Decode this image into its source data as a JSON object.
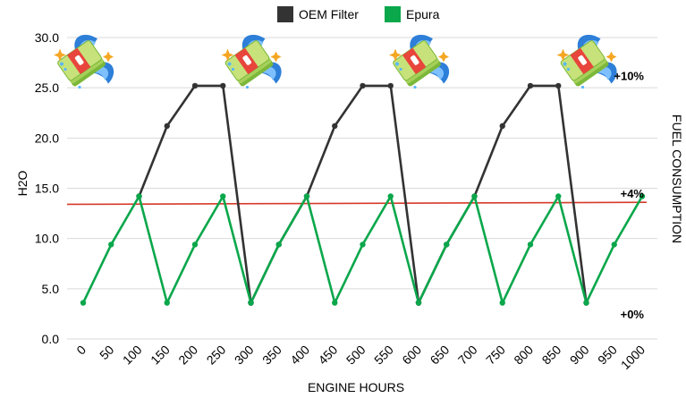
{
  "chart_data": {
    "type": "line",
    "categories": [
      "0",
      "50",
      "100",
      "150",
      "200",
      "250",
      "300",
      "350",
      "400",
      "450",
      "500",
      "550",
      "600",
      "650",
      "700",
      "750",
      "800",
      "850",
      "900",
      "950",
      "1000"
    ],
    "series": [
      {
        "name": "OEM Filter",
        "color": "#333333",
        "values": [
          null,
          null,
          null,
          null,
          null,
          null,
          3.6,
          9.4,
          14.2,
          21.2,
          25.2,
          25.2,
          3.6,
          9.4,
          14.2,
          21.2,
          25.2,
          25.2,
          3.6,
          null,
          null
        ],
        "segments": [
          [
            [
              100,
              14.2
            ],
            [
              150,
              21.2
            ],
            [
              200,
              25.2
            ],
            [
              250,
              25.2
            ],
            [
              300,
              3.6
            ]
          ],
          [
            [
              300,
              3.6
            ],
            [
              350,
              9.4
            ],
            [
              400,
              14.2
            ],
            [
              450,
              21.2
            ],
            [
              500,
              25.2
            ],
            [
              550,
              25.2
            ],
            [
              600,
              3.6
            ]
          ],
          [
            [
              600,
              3.6
            ],
            [
              650,
              9.4
            ],
            [
              700,
              14.2
            ],
            [
              750,
              21.2
            ],
            [
              800,
              25.2
            ],
            [
              850,
              25.2
            ],
            [
              900,
              3.6
            ]
          ]
        ]
      },
      {
        "name": "Epura",
        "color": "#0aa74b",
        "values": [
          3.6,
          9.4,
          14.2,
          3.6,
          9.4,
          14.2,
          3.6,
          9.4,
          14.2,
          3.6,
          9.4,
          14.2,
          3.6,
          9.4,
          14.2,
          3.6,
          9.4,
          14.2,
          3.6,
          9.4,
          14.2
        ]
      }
    ],
    "reference_line": {
      "color": "#d63a2a",
      "from": [
        0,
        13.4
      ],
      "to": [
        1000,
        13.6
      ]
    },
    "xlabel": "ENGINE HOURS",
    "ylabel": "H2O",
    "y2label": "FUEL CONSUMPTION",
    "ylim": [
      0,
      30
    ],
    "yticks": [
      "0.0",
      "5.0",
      "10.0",
      "15.0",
      "20.0",
      "25.0",
      "30.0"
    ],
    "grid": "horizontal",
    "legend_position": "top-center",
    "annotations": [
      {
        "text": "+10%",
        "y": 26.2
      },
      {
        "text": "+4%",
        "y": 14.5
      },
      {
        "text": "+0%",
        "y": 2.5
      }
    ],
    "money_icons_at": [
      0,
      300,
      600,
      900
    ]
  }
}
